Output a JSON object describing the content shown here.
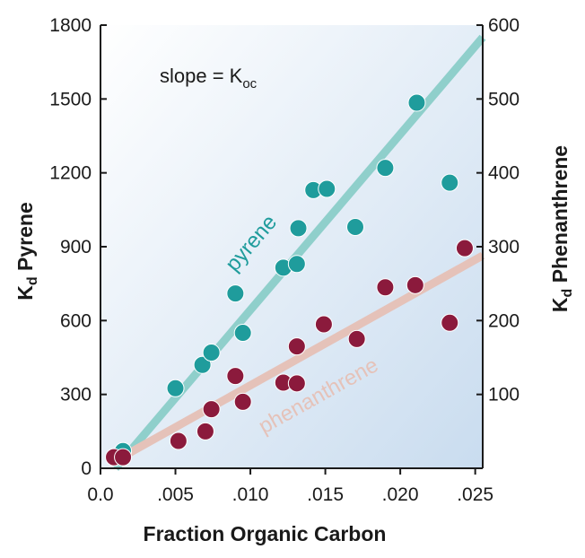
{
  "chart_data": {
    "type": "scatter",
    "title": "",
    "xlabel": "Fraction Organic Carbon",
    "ylabel_left": {
      "base": "K",
      "sub": "d",
      "rest": " Pyrene"
    },
    "ylabel_right": {
      "base": "K",
      "sub": "d",
      "rest": " Phenanthrene"
    },
    "xlim": [
      0,
      0.0255
    ],
    "ylim_left": [
      0,
      1800
    ],
    "ylim_right": [
      0,
      600
    ],
    "x_ticks": [
      0.0,
      0.005,
      0.01,
      0.015,
      0.02,
      0.025
    ],
    "x_tick_labels": [
      "0.0",
      ".005",
      ".010",
      ".015",
      ".020",
      ".025"
    ],
    "y_ticks_left": [
      0,
      300,
      600,
      900,
      1200,
      1500,
      1800
    ],
    "y_tick_labels_left": [
      "0",
      "300",
      "600",
      "900",
      "1200",
      "1500",
      "1800"
    ],
    "y_ticks_right": [
      100,
      200,
      300,
      400,
      500,
      600
    ],
    "y_tick_labels_right": [
      "100",
      "200",
      "300",
      "400",
      "500",
      "600"
    ],
    "annotation": {
      "text": "slope = K",
      "sub": "oc"
    },
    "background_gradient": [
      "#ffffff",
      "#c9dcef"
    ],
    "series": [
      {
        "name": "pyrene",
        "axis": "left",
        "color": "#1f9c9c",
        "line_color": "#8fcfcb",
        "fit_line": {
          "x": [
            0.001,
            0.0255
          ],
          "y": [
            0,
            1750
          ]
        },
        "points": [
          [
            0.0015,
            70
          ],
          [
            0.005,
            325
          ],
          [
            0.0068,
            420
          ],
          [
            0.0074,
            470
          ],
          [
            0.009,
            710
          ],
          [
            0.0095,
            550
          ],
          [
            0.0122,
            815
          ],
          [
            0.0131,
            830
          ],
          [
            0.0132,
            975
          ],
          [
            0.0142,
            1130
          ],
          [
            0.0151,
            1135
          ],
          [
            0.017,
            980
          ],
          [
            0.019,
            1220
          ],
          [
            0.0211,
            1485
          ],
          [
            0.0233,
            1160
          ]
        ]
      },
      {
        "name": "phenanthrene",
        "axis": "right",
        "color": "#8b1a3c",
        "line_color": "#e5c2b9",
        "fit_line": {
          "x": [
            0.0008,
            0.0255
          ],
          "y": [
            8,
            288
          ]
        },
        "points": [
          [
            0.0009,
            15
          ],
          [
            0.0015,
            15
          ],
          [
            0.0052,
            37
          ],
          [
            0.007,
            50
          ],
          [
            0.0074,
            80
          ],
          [
            0.009,
            125
          ],
          [
            0.0095,
            90
          ],
          [
            0.0122,
            116
          ],
          [
            0.0131,
            115
          ],
          [
            0.0131,
            165
          ],
          [
            0.0149,
            195
          ],
          [
            0.0171,
            175
          ],
          [
            0.019,
            245
          ],
          [
            0.021,
            248
          ],
          [
            0.0233,
            197
          ],
          [
            0.0243,
            298
          ]
        ]
      }
    ]
  }
}
